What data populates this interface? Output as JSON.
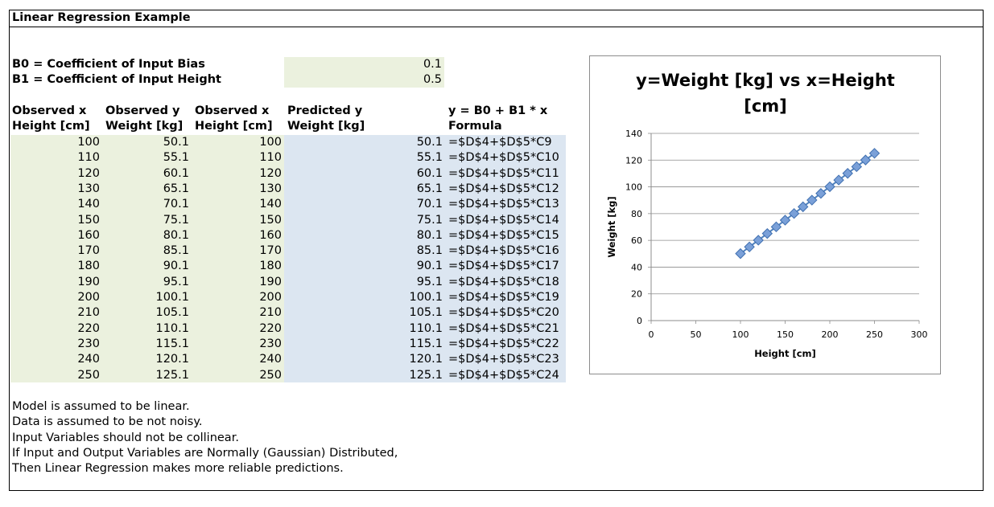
{
  "sheet": {
    "title": "Linear Regression Example",
    "coef_b0_label": "B0 = Coefficient of Input Bias",
    "coef_b0_value": "0.1",
    "coef_b1_label": "B1 = Coefficient of Input Height",
    "coef_b1_value": "0.5",
    "headers": {
      "col1_line1": "Observed x",
      "col1_line2": "Height [cm]",
      "col2_line1": "Observed y",
      "col2_line2": "Weight [kg]",
      "col3_line1": "Observed x",
      "col3_line2": "Height [cm]",
      "col4_line1": "Predicted y",
      "col4_line2": "Weight [kg]",
      "col5_line1": "y = B0 + B1 * x",
      "col5_line2": "Formula"
    },
    "rows": [
      {
        "x": "100",
        "y": "50.1",
        "x2": "100",
        "pred": "50.1",
        "formula": "=$D$4+$D$5*C9"
      },
      {
        "x": "110",
        "y": "55.1",
        "x2": "110",
        "pred": "55.1",
        "formula": "=$D$4+$D$5*C10"
      },
      {
        "x": "120",
        "y": "60.1",
        "x2": "120",
        "pred": "60.1",
        "formula": "=$D$4+$D$5*C11"
      },
      {
        "x": "130",
        "y": "65.1",
        "x2": "130",
        "pred": "65.1",
        "formula": "=$D$4+$D$5*C12"
      },
      {
        "x": "140",
        "y": "70.1",
        "x2": "140",
        "pred": "70.1",
        "formula": "=$D$4+$D$5*C13"
      },
      {
        "x": "150",
        "y": "75.1",
        "x2": "150",
        "pred": "75.1",
        "formula": "=$D$4+$D$5*C14"
      },
      {
        "x": "160",
        "y": "80.1",
        "x2": "160",
        "pred": "80.1",
        "formula": "=$D$4+$D$5*C15"
      },
      {
        "x": "170",
        "y": "85.1",
        "x2": "170",
        "pred": "85.1",
        "formula": "=$D$4+$D$5*C16"
      },
      {
        "x": "180",
        "y": "90.1",
        "x2": "180",
        "pred": "90.1",
        "formula": "=$D$4+$D$5*C17"
      },
      {
        "x": "190",
        "y": "95.1",
        "x2": "190",
        "pred": "95.1",
        "formula": "=$D$4+$D$5*C18"
      },
      {
        "x": "200",
        "y": "100.1",
        "x2": "200",
        "pred": "100.1",
        "formula": "=$D$4+$D$5*C19"
      },
      {
        "x": "210",
        "y": "105.1",
        "x2": "210",
        "pred": "105.1",
        "formula": "=$D$4+$D$5*C20"
      },
      {
        "x": "220",
        "y": "110.1",
        "x2": "220",
        "pred": "110.1",
        "formula": "=$D$4+$D$5*C21"
      },
      {
        "x": "230",
        "y": "115.1",
        "x2": "230",
        "pred": "115.1",
        "formula": "=$D$4+$D$5*C22"
      },
      {
        "x": "240",
        "y": "120.1",
        "x2": "240",
        "pred": "120.1",
        "formula": "=$D$4+$D$5*C23"
      },
      {
        "x": "250",
        "y": "125.1",
        "x2": "250",
        "pred": "125.1",
        "formula": "=$D$4+$D$5*C24"
      }
    ],
    "notes": [
      "Model is assumed to be linear.",
      "Data is assumed to be not noisy.",
      "Input Variables should not be collinear.",
      "If Input and Output Variables are Normally (Gaussian) Distributed,",
      "Then Linear Regression makes more reliable predictions."
    ],
    "colors": {
      "input_fill": "#ebf1de",
      "prediction_fill": "#dce6f1",
      "marker": "#4f81bd"
    }
  },
  "chart_data": {
    "type": "line",
    "title_line1": "y=Weight [kg] vs x=Height",
    "title_line2": "[cm]",
    "xlabel": "Height [cm]",
    "ylabel": "Weight [kg]",
    "xlim": [
      0,
      300
    ],
    "ylim": [
      0,
      140
    ],
    "xticks": [
      "0",
      "50",
      "100",
      "150",
      "200",
      "250",
      "300"
    ],
    "yticks": [
      "0",
      "20",
      "40",
      "60",
      "80",
      "100",
      "120",
      "140"
    ],
    "grid": true,
    "legend": "none",
    "marker": "diamond",
    "x": [
      100,
      110,
      120,
      130,
      140,
      150,
      160,
      170,
      180,
      190,
      200,
      210,
      220,
      230,
      240,
      250
    ],
    "y": [
      50.1,
      55.1,
      60.1,
      65.1,
      70.1,
      75.1,
      80.1,
      85.1,
      90.1,
      95.1,
      100.1,
      105.1,
      110.1,
      115.1,
      120.1,
      125.1
    ]
  }
}
